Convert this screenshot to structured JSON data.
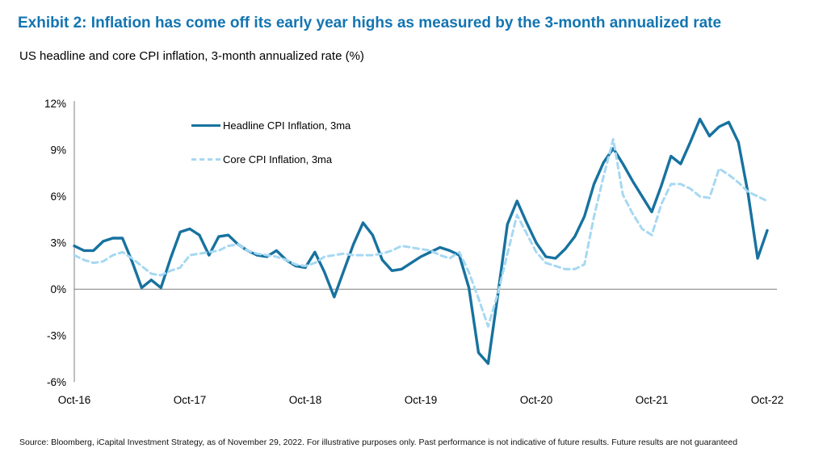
{
  "header": {
    "title": "Exhibit 2: Inflation has come off its early year highs as measured by the 3-month annualized rate",
    "subtitle": "US headline and core CPI inflation, 3-month annualized rate (%)"
  },
  "footer": {
    "source": "Source: Bloomberg, iCapital Investment Strategy, as of November 29, 2022. For illustrative purposes only. Past performance is not indicative of future results. Future results are not guaranteed"
  },
  "colors": {
    "title_blue": "#1375B2",
    "headline_line": "#17729F",
    "core_line": "#A6D8F2",
    "axis_gray": "#7F7F7F",
    "text": "#000000",
    "background": "#FFFFFF"
  },
  "chart_data": {
    "type": "line",
    "title": "US headline and core CPI inflation, 3-month annualized rate (%)",
    "xlabel": "",
    "ylabel": "",
    "ylim": [
      -6,
      12
    ],
    "grid": false,
    "legend_position": "top-left-inside",
    "axis_color": "#7F7F7F",
    "y_ticks": [
      "12%",
      "9%",
      "6%",
      "3%",
      "0%",
      "-3%",
      "-6%"
    ],
    "y_tick_values": [
      12,
      9,
      6,
      3,
      0,
      -3,
      -6
    ],
    "x_tick_labels": [
      "Oct-16",
      "Oct-17",
      "Oct-18",
      "Oct-19",
      "Oct-20",
      "Oct-21",
      "Oct-22"
    ],
    "x_tick_indices": [
      0,
      12,
      24,
      36,
      48,
      60,
      72
    ],
    "x": [
      "Oct-16",
      "Nov-16",
      "Dec-16",
      "Jan-17",
      "Feb-17",
      "Mar-17",
      "Apr-17",
      "May-17",
      "Jun-17",
      "Jul-17",
      "Aug-17",
      "Sep-17",
      "Oct-17",
      "Nov-17",
      "Dec-17",
      "Jan-18",
      "Feb-18",
      "Mar-18",
      "Apr-18",
      "May-18",
      "Jun-18",
      "Jul-18",
      "Aug-18",
      "Sep-18",
      "Oct-18",
      "Nov-18",
      "Dec-18",
      "Jan-19",
      "Feb-19",
      "Mar-19",
      "Apr-19",
      "May-19",
      "Jun-19",
      "Jul-19",
      "Aug-19",
      "Sep-19",
      "Oct-19",
      "Nov-19",
      "Dec-19",
      "Jan-20",
      "Feb-20",
      "Mar-20",
      "Apr-20",
      "May-20",
      "Jun-20",
      "Jul-20",
      "Aug-20",
      "Sep-20",
      "Oct-20",
      "Nov-20",
      "Dec-20",
      "Jan-21",
      "Feb-21",
      "Mar-21",
      "Apr-21",
      "May-21",
      "Jun-21",
      "Jul-21",
      "Aug-21",
      "Sep-21",
      "Oct-21",
      "Nov-21",
      "Dec-21",
      "Jan-22",
      "Feb-22",
      "Mar-22",
      "Apr-22",
      "May-22",
      "Jun-22",
      "Jul-22",
      "Aug-22",
      "Sep-22",
      "Oct-22"
    ],
    "series": [
      {
        "name": "Headline CPI Inflation, 3ma",
        "color": "#17729F",
        "style": "solid",
        "values": [
          2.8,
          2.5,
          2.5,
          3.1,
          3.3,
          3.3,
          1.8,
          0.1,
          0.6,
          0.1,
          2.0,
          3.7,
          3.9,
          3.5,
          2.2,
          3.4,
          3.5,
          2.9,
          2.5,
          2.2,
          2.1,
          2.5,
          1.9,
          1.5,
          1.4,
          2.4,
          1.1,
          -0.5,
          1.2,
          2.9,
          4.3,
          3.5,
          1.9,
          1.2,
          1.3,
          1.7,
          2.1,
          2.4,
          2.7,
          2.5,
          2.2,
          0.1,
          -4.1,
          -4.8,
          -0.4,
          4.2,
          5.7,
          4.3,
          3.0,
          2.1,
          2.0,
          2.6,
          3.4,
          4.7,
          6.8,
          8.2,
          9.1,
          8.1,
          7.0,
          6.0,
          5.0,
          6.7,
          8.6,
          8.1,
          9.5,
          11.0,
          9.9,
          10.5,
          10.8,
          9.5,
          6.2,
          2.0,
          3.8
        ]
      },
      {
        "name": "Core CPI Inflation, 3ma",
        "color": "#A6D8F2",
        "style": "dashed",
        "values": [
          2.2,
          1.9,
          1.7,
          1.8,
          2.2,
          2.4,
          2.0,
          1.5,
          1.0,
          0.9,
          1.2,
          1.4,
          2.2,
          2.3,
          2.4,
          2.5,
          2.8,
          2.9,
          2.5,
          2.3,
          2.2,
          2.1,
          1.9,
          1.6,
          1.5,
          1.7,
          2.1,
          2.2,
          2.3,
          2.2,
          2.2,
          2.2,
          2.3,
          2.5,
          2.8,
          2.7,
          2.6,
          2.5,
          2.2,
          2.0,
          2.4,
          1.1,
          -0.6,
          -2.4,
          -0.3,
          2.3,
          4.8,
          3.6,
          2.4,
          1.7,
          1.5,
          1.3,
          1.3,
          1.6,
          4.7,
          7.3,
          9.7,
          6.1,
          4.9,
          3.9,
          3.5,
          5.5,
          6.8,
          6.8,
          6.5,
          6.0,
          5.9,
          7.8,
          7.4,
          6.9,
          6.3,
          6.0,
          5.7
        ]
      }
    ]
  }
}
